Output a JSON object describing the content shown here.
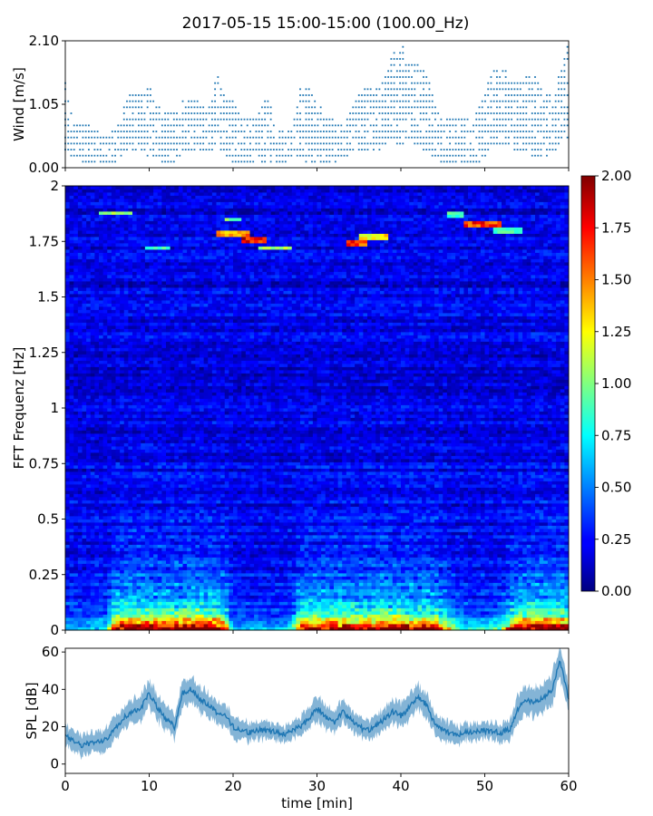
{
  "title": "2017-05-15 15:00-15:00 (100.00_Hz)",
  "chart_data": [
    {
      "id": "wind",
      "type": "scatter",
      "ylabel": "Wind [m/s]",
      "xlim": [
        0,
        60
      ],
      "ylim": [
        0,
        2.1
      ],
      "yticks": [
        0,
        1.05,
        2.1
      ],
      "ytick_labels": [
        "0.00",
        "1.05",
        "2.10"
      ],
      "xticks": [
        0,
        10,
        20,
        30,
        40,
        50,
        60
      ],
      "marker_color": "#1f77b4",
      "envelope": {
        "x": [
          0,
          1,
          2,
          3,
          4,
          5,
          6,
          7,
          8,
          9,
          10,
          11,
          12,
          13,
          14,
          15,
          16,
          17,
          18,
          19,
          20,
          21,
          22,
          23,
          24,
          25,
          26,
          27,
          28,
          29,
          30,
          31,
          32,
          33,
          34,
          35,
          36,
          37,
          38,
          39,
          40,
          41,
          42,
          43,
          44,
          45,
          46,
          47,
          48,
          49,
          50,
          51,
          52,
          53,
          54,
          55,
          56,
          57,
          58,
          59,
          60
        ],
        "ymin": [
          0.3,
          0.2,
          0.1,
          0.1,
          0.1,
          0.1,
          0.1,
          0.3,
          0.3,
          0.3,
          0.2,
          0.2,
          0.1,
          0.1,
          0.3,
          0.3,
          0.3,
          0.3,
          0.4,
          0.3,
          0.1,
          0.1,
          0.1,
          0.1,
          0.1,
          0.1,
          0.1,
          0.2,
          0.2,
          0.1,
          0.1,
          0.1,
          0.1,
          0.1,
          0.3,
          0.3,
          0.3,
          0.3,
          0.4,
          0.4,
          0.4,
          0.5,
          0.4,
          0.3,
          0.2,
          0.1,
          0.1,
          0.1,
          0.1,
          0.1,
          0.2,
          0.4,
          0.4,
          0.4,
          0.3,
          0.3,
          0.2,
          0.2,
          0.3,
          0.4,
          0.4
        ],
        "ymax": [
          1.4,
          0.8,
          0.7,
          0.7,
          0.6,
          0.5,
          0.7,
          1.0,
          1.3,
          1.2,
          1.4,
          1.1,
          0.9,
          0.9,
          1.1,
          1.2,
          1.1,
          0.9,
          1.6,
          1.2,
          1.1,
          0.8,
          0.8,
          0.9,
          1.3,
          0.7,
          0.6,
          0.6,
          1.3,
          1.4,
          1.1,
          0.9,
          0.8,
          0.7,
          1.0,
          1.2,
          1.4,
          1.3,
          1.5,
          1.9,
          2.1,
          1.7,
          1.7,
          1.6,
          1.1,
          0.8,
          0.8,
          0.8,
          0.8,
          0.9,
          1.3,
          1.6,
          1.7,
          1.5,
          1.4,
          1.6,
          1.5,
          1.3,
          1.2,
          1.6,
          2.1
        ]
      }
    },
    {
      "id": "spectrogram",
      "type": "heatmap",
      "ylabel": "FFT Frequenz [Hz]",
      "xlim": [
        0,
        60
      ],
      "ylim": [
        0,
        2
      ],
      "yticks": [
        0,
        0.25,
        0.5,
        0.75,
        1,
        1.25,
        1.5,
        1.75,
        2
      ],
      "ytick_labels": [
        "0",
        "0.25",
        "0.5",
        "0.75",
        "1",
        "1.25",
        "1.5",
        "1.75",
        "2"
      ],
      "xticks": [
        0,
        10,
        20,
        30,
        40,
        50,
        60
      ],
      "colormap": "jet",
      "clim": [
        0,
        2
      ],
      "colorbar_ticks": [
        0,
        0.25,
        0.5,
        0.75,
        1,
        1.25,
        1.5,
        1.75,
        2
      ],
      "colorbar_tick_labels": [
        "0.00",
        "0.25",
        "0.50",
        "0.75",
        "1.00",
        "1.25",
        "1.50",
        "1.75",
        "2.00"
      ],
      "low_freq_activity": {
        "x": [
          0,
          2,
          4,
          5,
          6,
          8,
          10,
          12,
          14,
          16,
          18,
          19,
          20,
          22,
          24,
          26,
          27,
          28,
          30,
          32,
          34,
          36,
          38,
          40,
          42,
          44,
          46,
          48,
          50,
          52,
          53,
          54,
          56,
          58,
          60
        ],
        "value": [
          0.4,
          0.4,
          0.5,
          0.6,
          1.7,
          1.8,
          1.7,
          1.8,
          1.9,
          1.9,
          1.8,
          1.4,
          0.4,
          0.4,
          0.4,
          0.4,
          0.6,
          1.5,
          1.7,
          1.7,
          1.6,
          1.6,
          1.8,
          1.8,
          1.7,
          1.6,
          0.9,
          0.5,
          0.6,
          0.7,
          1.3,
          1.8,
          1.8,
          1.8,
          1.7
        ]
      },
      "tonal_lines": [
        {
          "x_start": 4.2,
          "x_end": 8.0,
          "freq": 1.88,
          "value": 1.1
        },
        {
          "x_start": 9.5,
          "x_end": 12.5,
          "freq": 1.72,
          "value": 0.9
        },
        {
          "x_start": 18.0,
          "x_end": 22.0,
          "freq": 1.79,
          "value": 1.5
        },
        {
          "x_start": 19.0,
          "x_end": 21.0,
          "freq": 1.85,
          "value": 1.0
        },
        {
          "x_start": 21.0,
          "x_end": 24.0,
          "freq": 1.76,
          "value": 1.8
        },
        {
          "x_start": 23.0,
          "x_end": 27.0,
          "freq": 1.72,
          "value": 1.1
        },
        {
          "x_start": 33.5,
          "x_end": 36.0,
          "freq": 1.74,
          "value": 1.7
        },
        {
          "x_start": 35.0,
          "x_end": 38.5,
          "freq": 1.77,
          "value": 1.3
        },
        {
          "x_start": 45.5,
          "x_end": 47.5,
          "freq": 1.87,
          "value": 0.9
        },
        {
          "x_start": 47.5,
          "x_end": 52.0,
          "freq": 1.83,
          "value": 1.7
        },
        {
          "x_start": 51.0,
          "x_end": 54.5,
          "freq": 1.8,
          "value": 0.9
        }
      ]
    },
    {
      "id": "spl",
      "type": "line",
      "ylabel": "SPL [dB]",
      "xlabel": "time [min]",
      "xlim": [
        0,
        60
      ],
      "ylim": [
        -5,
        62
      ],
      "yticks": [
        0,
        20,
        40,
        60
      ],
      "ytick_labels": [
        "0",
        "20",
        "40",
        "60"
      ],
      "xticks": [
        0,
        10,
        20,
        30,
        40,
        50,
        60
      ],
      "xtick_labels": [
        "0",
        "10",
        "20",
        "30",
        "40",
        "50",
        "60"
      ],
      "line_color": "#1f77b4",
      "x": [
        0,
        1,
        2,
        3,
        4,
        5,
        6,
        7,
        8,
        9,
        10,
        11,
        12,
        13,
        14,
        15,
        16,
        17,
        18,
        19,
        20,
        21,
        22,
        23,
        24,
        25,
        26,
        27,
        28,
        29,
        30,
        31,
        32,
        33,
        34,
        35,
        36,
        37,
        38,
        39,
        40,
        41,
        42,
        43,
        44,
        45,
        46,
        47,
        48,
        49,
        50,
        51,
        52,
        53,
        54,
        55,
        56,
        57,
        58,
        59,
        60
      ],
      "mean": [
        15,
        12,
        10,
        11,
        12,
        14,
        20,
        25,
        28,
        30,
        38,
        30,
        24,
        20,
        38,
        40,
        35,
        32,
        28,
        26,
        20,
        18,
        17,
        18,
        18,
        17,
        16,
        18,
        20,
        24,
        30,
        25,
        22,
        28,
        24,
        20,
        18,
        20,
        24,
        28,
        26,
        30,
        36,
        32,
        22,
        18,
        16,
        16,
        17,
        18,
        18,
        17,
        17,
        19,
        30,
        34,
        33,
        35,
        40,
        55,
        35
      ],
      "spread": [
        6,
        6,
        6,
        6,
        6,
        7,
        7,
        7,
        7,
        8,
        8,
        7,
        7,
        7,
        8,
        8,
        7,
        7,
        7,
        6,
        6,
        6,
        5,
        5,
        5,
        5,
        5,
        5,
        6,
        6,
        7,
        7,
        6,
        7,
        6,
        6,
        5,
        6,
        6,
        7,
        7,
        7,
        7,
        7,
        6,
        6,
        6,
        5,
        5,
        5,
        5,
        5,
        5,
        6,
        8,
        8,
        8,
        8,
        9,
        9,
        8
      ]
    }
  ]
}
